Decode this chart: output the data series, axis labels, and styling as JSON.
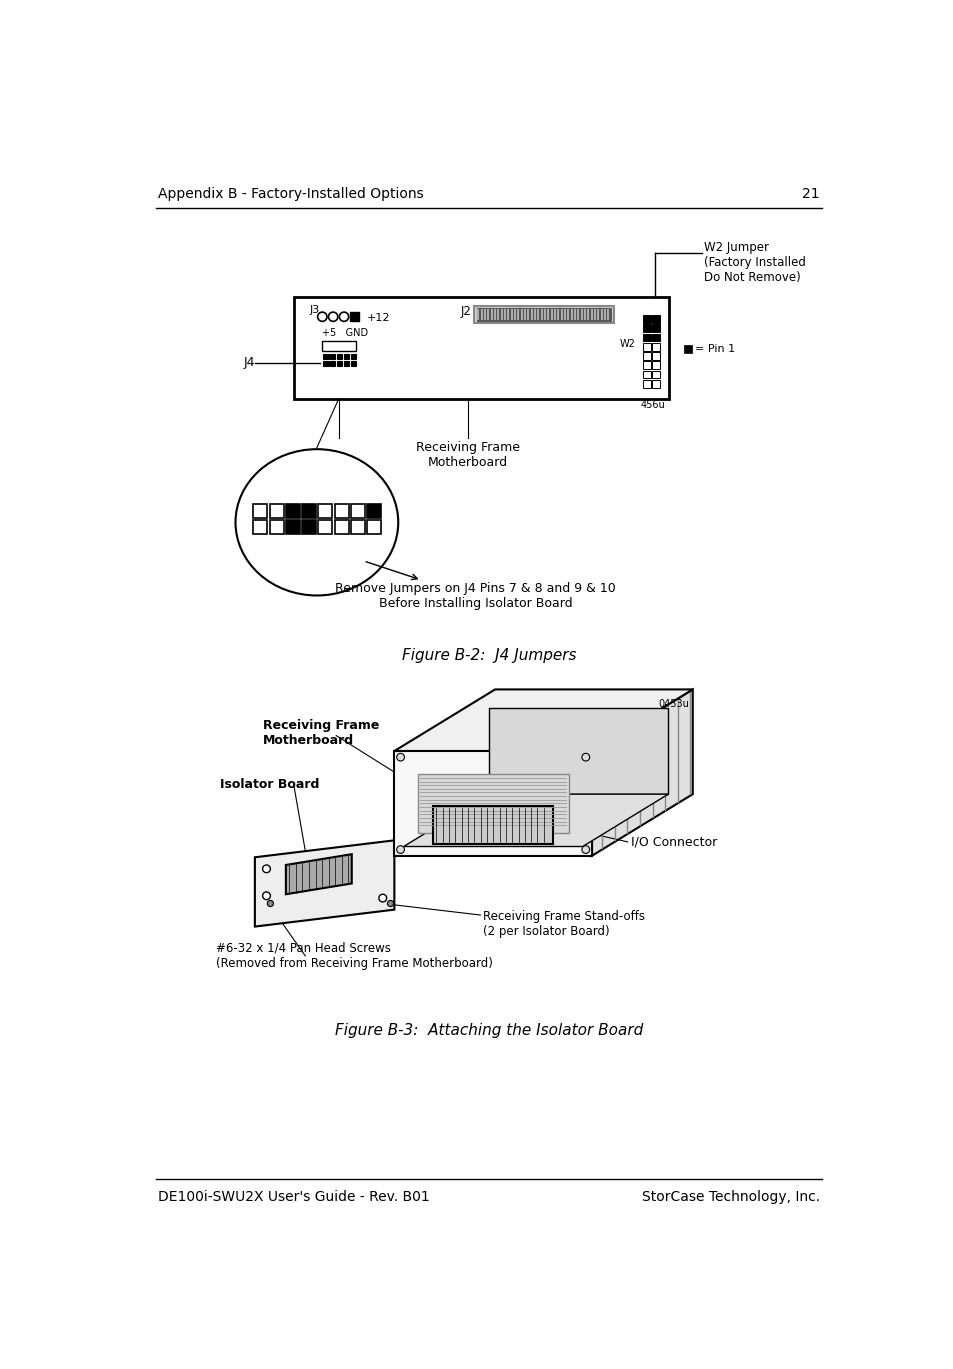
{
  "bg_color": "#ffffff",
  "text_color": "#000000",
  "header_text": "Appendix B - Factory-Installed Options",
  "header_page": "21",
  "footer_left": "DE100i-SWU2X User's Guide - Rev. B01",
  "footer_right": "StorCase Technology, Inc.",
  "fig1_caption": "Figure B-2:  J4 Jumpers",
  "fig2_caption": "Figure B-3:  Attaching the Isolator Board",
  "w2_label": "W2 Jumper\n(Factory Installed\nDo Not Remove)",
  "receiving_frame_label": "Receiving Frame\nMotherboard",
  "receiving_frame_label2": "Receiving Frame\nMotherboard",
  "j4_label": "J4",
  "j2_label": "J2",
  "j3_label": "J3",
  "pin1_label": "■ = Pin 1",
  "w2_small_label": "W2",
  "plus12_label": "+12",
  "plus5_gnd_label": "+5   GND",
  "remove_jumpers_label": "Remove Jumpers on J4 Pins 7 & 8 and 9 & 10\nBefore Installing Isolator Board",
  "isolator_board_label": "Isolator Board",
  "io_connector_label": "I/O Connector",
  "standoffs_label": "Receiving Frame Stand-offs\n(2 per Isolator Board)",
  "screws_label": "#6-32 x 1/4 Pan Head Screws\n(Removed from Receiving Frame Motherboard)",
  "image_id1": "456u",
  "image_id2": "0453u"
}
